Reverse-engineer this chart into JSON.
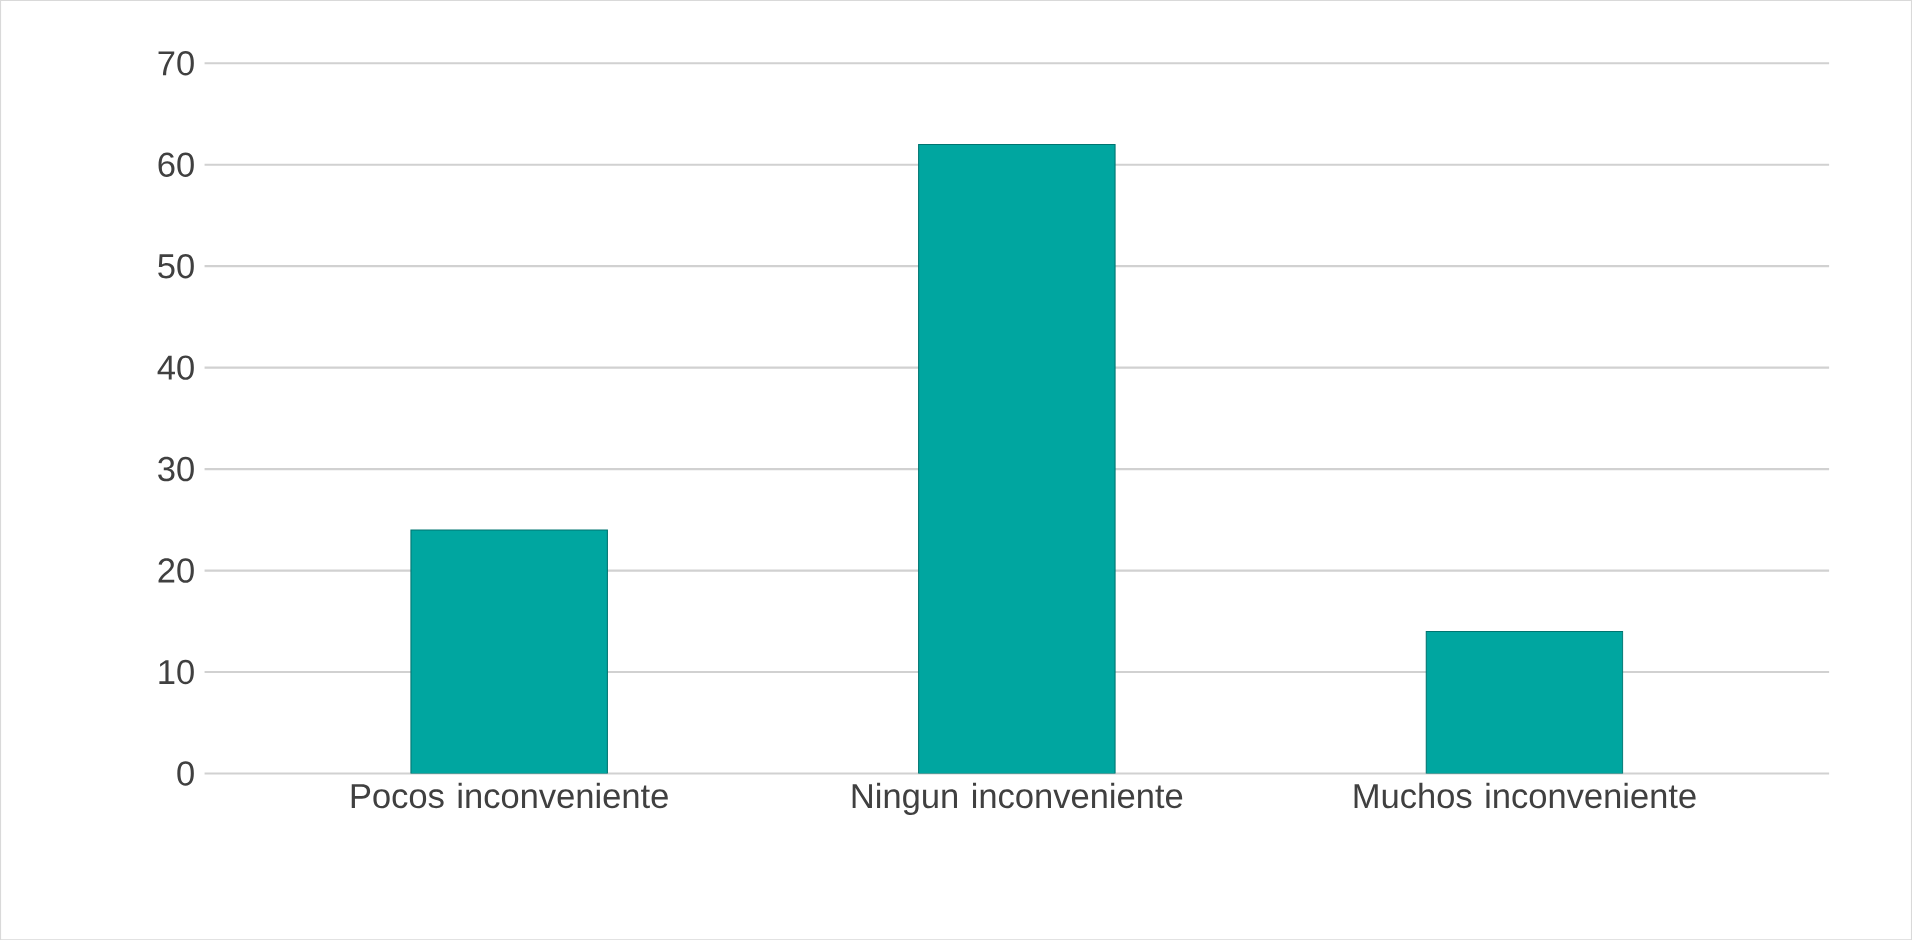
{
  "chart_data": {
    "type": "bar",
    "categories": [
      "Pocos inconveniente",
      "Ningun inconveniente",
      "Muchos inconveniente"
    ],
    "values": [
      24,
      62,
      14
    ],
    "color": "#00a6a0",
    "ylim": [
      0,
      70
    ],
    "yticks": [
      0,
      10,
      20,
      30,
      40,
      50,
      60,
      70
    ],
    "grid": "y"
  }
}
